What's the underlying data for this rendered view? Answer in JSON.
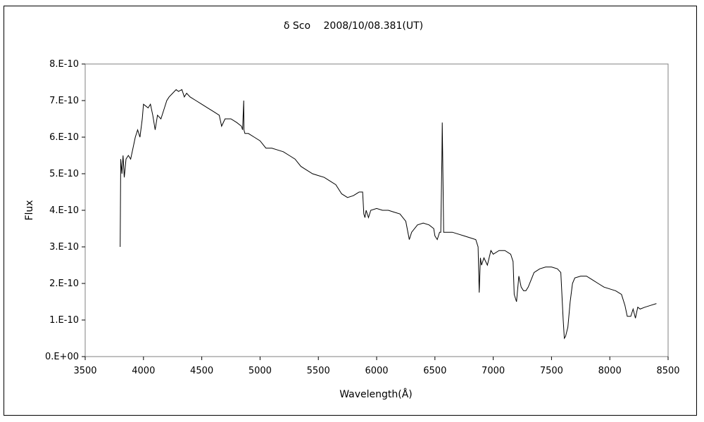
{
  "chart_data": {
    "type": "line",
    "title": "δ Sco　 2008/10/08.381(UT)",
    "xlabel": "Wavelength(Å)",
    "ylabel": "Flux",
    "xlim": [
      3500,
      8500
    ],
    "ylim": [
      0,
      8e-10
    ],
    "x_ticks": [
      3500,
      4000,
      4500,
      5000,
      5500,
      6000,
      6500,
      7000,
      7500,
      8000,
      8500
    ],
    "x_tick_labels": [
      "3500",
      "4000",
      "4500",
      "5000",
      "5500",
      "6000",
      "6500",
      "7000",
      "7500",
      "8000",
      "8500"
    ],
    "y_ticks": [
      0,
      1e-10,
      2e-10,
      3e-10,
      4e-10,
      5e-10,
      6e-10,
      7e-10,
      8e-10
    ],
    "y_tick_labels": [
      "0.E+00",
      "1.E-10",
      "2.E-10",
      "3.E-10",
      "4.E-10",
      "5.E-10",
      "6.E-10",
      "7.E-10",
      "8.E-10"
    ],
    "grid": false,
    "legend": "none",
    "line_color": "#000000",
    "series": [
      {
        "points": [
          [
            3800,
            3e-10
          ],
          [
            3805,
            5.4e-10
          ],
          [
            3815,
            5e-10
          ],
          [
            3825,
            5.5e-10
          ],
          [
            3835,
            4.9e-10
          ],
          [
            3850,
            5.4e-10
          ],
          [
            3870,
            5.5e-10
          ],
          [
            3890,
            5.4e-10
          ],
          [
            3910,
            5.7e-10
          ],
          [
            3930,
            6e-10
          ],
          [
            3950,
            6.2e-10
          ],
          [
            3970,
            6e-10
          ],
          [
            3990,
            6.5e-10
          ],
          [
            4000,
            6.9e-10
          ],
          [
            4020,
            6.85e-10
          ],
          [
            4040,
            6.8e-10
          ],
          [
            4060,
            6.9e-10
          ],
          [
            4080,
            6.6e-10
          ],
          [
            4100,
            6.2e-10
          ],
          [
            4120,
            6.6e-10
          ],
          [
            4150,
            6.5e-10
          ],
          [
            4180,
            6.8e-10
          ],
          [
            4200,
            7e-10
          ],
          [
            4220,
            7.1e-10
          ],
          [
            4250,
            7.2e-10
          ],
          [
            4280,
            7.3e-10
          ],
          [
            4300,
            7.25e-10
          ],
          [
            4330,
            7.3e-10
          ],
          [
            4350,
            7.1e-10
          ],
          [
            4370,
            7.2e-10
          ],
          [
            4400,
            7.1e-10
          ],
          [
            4450,
            7e-10
          ],
          [
            4500,
            6.9e-10
          ],
          [
            4550,
            6.8e-10
          ],
          [
            4600,
            6.7e-10
          ],
          [
            4650,
            6.6e-10
          ],
          [
            4670,
            6.3e-10
          ],
          [
            4700,
            6.5e-10
          ],
          [
            4750,
            6.5e-10
          ],
          [
            4800,
            6.4e-10
          ],
          [
            4840,
            6.3e-10
          ],
          [
            4850,
            6.2e-10
          ],
          [
            4860,
            7e-10
          ],
          [
            4862,
            6.2e-10
          ],
          [
            4870,
            6.1e-10
          ],
          [
            4900,
            6.1e-10
          ],
          [
            4950,
            6e-10
          ],
          [
            5000,
            5.9e-10
          ],
          [
            5050,
            5.7e-10
          ],
          [
            5100,
            5.7e-10
          ],
          [
            5150,
            5.65e-10
          ],
          [
            5200,
            5.6e-10
          ],
          [
            5250,
            5.5e-10
          ],
          [
            5300,
            5.4e-10
          ],
          [
            5350,
            5.2e-10
          ],
          [
            5400,
            5.1e-10
          ],
          [
            5450,
            5e-10
          ],
          [
            5500,
            4.95e-10
          ],
          [
            5550,
            4.9e-10
          ],
          [
            5600,
            4.8e-10
          ],
          [
            5650,
            4.7e-10
          ],
          [
            5700,
            4.45e-10
          ],
          [
            5750,
            4.35e-10
          ],
          [
            5800,
            4.4e-10
          ],
          [
            5850,
            4.5e-10
          ],
          [
            5880,
            4.5e-10
          ],
          [
            5890,
            3.9e-10
          ],
          [
            5900,
            3.8e-10
          ],
          [
            5910,
            4e-10
          ],
          [
            5930,
            3.8e-10
          ],
          [
            5950,
            4e-10
          ],
          [
            6000,
            4.05e-10
          ],
          [
            6050,
            4e-10
          ],
          [
            6100,
            4e-10
          ],
          [
            6150,
            3.95e-10
          ],
          [
            6200,
            3.9e-10
          ],
          [
            6250,
            3.7e-10
          ],
          [
            6280,
            3.2e-10
          ],
          [
            6300,
            3.4e-10
          ],
          [
            6350,
            3.6e-10
          ],
          [
            6400,
            3.65e-10
          ],
          [
            6450,
            3.6e-10
          ],
          [
            6490,
            3.5e-10
          ],
          [
            6500,
            3.3e-10
          ],
          [
            6520,
            3.2e-10
          ],
          [
            6540,
            3.4e-10
          ],
          [
            6550,
            3.4e-10
          ],
          [
            6560,
            5.4e-10
          ],
          [
            6563,
            6.4e-10
          ],
          [
            6567,
            5.4e-10
          ],
          [
            6575,
            3.4e-10
          ],
          [
            6600,
            3.4e-10
          ],
          [
            6650,
            3.4e-10
          ],
          [
            6700,
            3.35e-10
          ],
          [
            6750,
            3.3e-10
          ],
          [
            6800,
            3.25e-10
          ],
          [
            6850,
            3.2e-10
          ],
          [
            6870,
            3e-10
          ],
          [
            6880,
            1.75e-10
          ],
          [
            6890,
            2.7e-10
          ],
          [
            6900,
            2.5e-10
          ],
          [
            6920,
            2.7e-10
          ],
          [
            6950,
            2.5e-10
          ],
          [
            6980,
            2.9e-10
          ],
          [
            7000,
            2.8e-10
          ],
          [
            7050,
            2.9e-10
          ],
          [
            7100,
            2.9e-10
          ],
          [
            7150,
            2.8e-10
          ],
          [
            7170,
            2.6e-10
          ],
          [
            7180,
            1.7e-10
          ],
          [
            7200,
            1.5e-10
          ],
          [
            7220,
            2.2e-10
          ],
          [
            7240,
            1.9e-10
          ],
          [
            7260,
            1.8e-10
          ],
          [
            7280,
            1.8e-10
          ],
          [
            7300,
            1.9e-10
          ],
          [
            7350,
            2.3e-10
          ],
          [
            7400,
            2.4e-10
          ],
          [
            7450,
            2.45e-10
          ],
          [
            7500,
            2.45e-10
          ],
          [
            7550,
            2.4e-10
          ],
          [
            7580,
            2.3e-10
          ],
          [
            7600,
            1e-10
          ],
          [
            7610,
            5e-11
          ],
          [
            7620,
            5.5e-11
          ],
          [
            7640,
            8e-11
          ],
          [
            7660,
            1.5e-10
          ],
          [
            7680,
            2e-10
          ],
          [
            7700,
            2.15e-10
          ],
          [
            7750,
            2.2e-10
          ],
          [
            7800,
            2.2e-10
          ],
          [
            7850,
            2.1e-10
          ],
          [
            7900,
            2e-10
          ],
          [
            7950,
            1.9e-10
          ],
          [
            8000,
            1.85e-10
          ],
          [
            8050,
            1.8e-10
          ],
          [
            8100,
            1.7e-10
          ],
          [
            8130,
            1.4e-10
          ],
          [
            8150,
            1.1e-10
          ],
          [
            8180,
            1.1e-10
          ],
          [
            8200,
            1.3e-10
          ],
          [
            8220,
            1.05e-10
          ],
          [
            8240,
            1.35e-10
          ],
          [
            8260,
            1.3e-10
          ],
          [
            8300,
            1.35e-10
          ],
          [
            8350,
            1.4e-10
          ],
          [
            8400,
            1.45e-10
          ]
        ]
      }
    ]
  }
}
